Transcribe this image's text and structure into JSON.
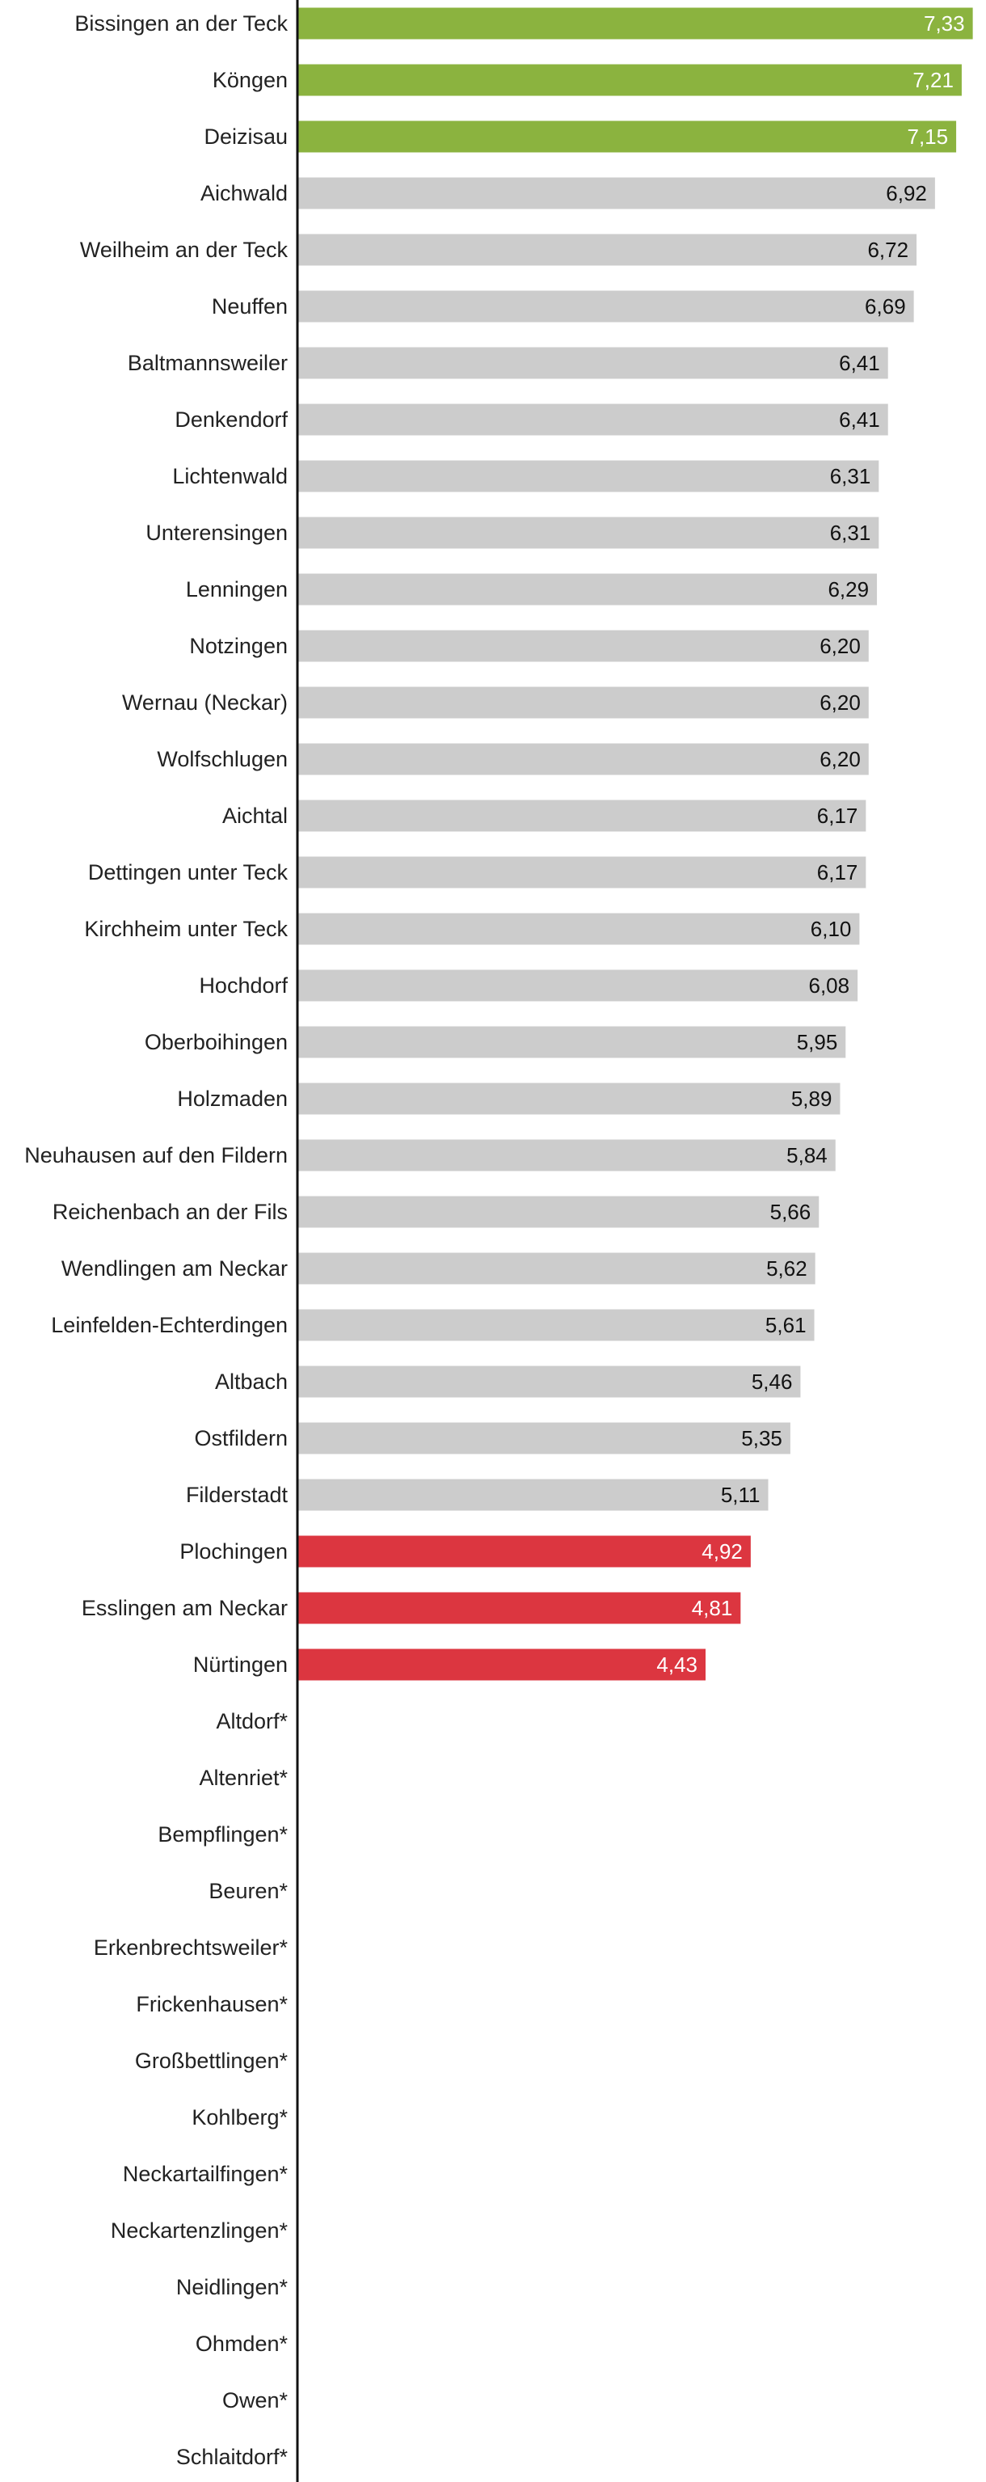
{
  "chart_data": {
    "type": "bar",
    "orientation": "horizontal",
    "title": "",
    "xlabel": "",
    "ylabel": "",
    "xlim": [
      0,
      7.5
    ],
    "grid": false,
    "legend": "none",
    "colors": {
      "high": "#8bb33f",
      "mid": "#cccccc",
      "low": "#dc3640",
      "axis": "#111111"
    },
    "categories": [
      "Bissingen an der Teck",
      "Köngen",
      "Deizisau",
      "Aichwald",
      "Weilheim an der Teck",
      "Neuffen",
      "Baltmannsweiler",
      "Denkendorf",
      "Lichtenwald",
      "Unterensingen",
      "Lenningen",
      "Notzingen",
      "Wernau (Neckar)",
      "Wolfschlugen",
      "Aichtal",
      "Dettingen unter Teck",
      "Kirchheim unter Teck",
      "Hochdorf",
      "Oberboihingen",
      "Holzmaden",
      "Neuhausen auf den Fildern",
      "Reichenbach an der Fils",
      "Wendlingen am Neckar",
      "Leinfelden-Echterdingen",
      "Altbach",
      "Ostfildern",
      "Filderstadt",
      "Plochingen",
      "Esslingen am Neckar",
      "Nürtingen",
      "Altdorf*",
      "Altenriet*",
      "Bempflingen*",
      "Beuren*",
      "Erkenbrechtsweiler*",
      "Frickenhausen*",
      "Großbettlingen*",
      "Kohlberg*",
      "Neckartailfingen*",
      "Neckartenzlingen*",
      "Neidlingen*",
      "Ohmden*",
      "Owen*",
      "Schlaitdorf*"
    ],
    "values": [
      7.33,
      7.21,
      7.15,
      6.92,
      6.72,
      6.69,
      6.41,
      6.41,
      6.31,
      6.31,
      6.29,
      6.2,
      6.2,
      6.2,
      6.17,
      6.17,
      6.1,
      6.08,
      5.95,
      5.89,
      5.84,
      5.66,
      5.62,
      5.61,
      5.46,
      5.35,
      5.11,
      4.92,
      4.81,
      4.43,
      null,
      null,
      null,
      null,
      null,
      null,
      null,
      null,
      null,
      null,
      null,
      null,
      null,
      null
    ],
    "value_labels": [
      "7,33",
      "7,21",
      "7,15",
      "6,92",
      "6,72",
      "6,69",
      "6,41",
      "6,41",
      "6,31",
      "6,31",
      "6,29",
      "6,20",
      "6,20",
      "6,20",
      "6,17",
      "6,17",
      "6,10",
      "6,08",
      "5,95",
      "5,89",
      "5,84",
      "5,66",
      "5,62",
      "5,61",
      "5,46",
      "5,35",
      "5,11",
      "4,92",
      "4,81",
      "4,43",
      "",
      "",
      "",
      "",
      "",
      "",
      "",
      "",
      "",
      "",
      "",
      "",
      "",
      ""
    ],
    "groups": [
      "high",
      "high",
      "high",
      "mid",
      "mid",
      "mid",
      "mid",
      "mid",
      "mid",
      "mid",
      "mid",
      "mid",
      "mid",
      "mid",
      "mid",
      "mid",
      "mid",
      "mid",
      "mid",
      "mid",
      "mid",
      "mid",
      "mid",
      "mid",
      "mid",
      "mid",
      "mid",
      "low",
      "low",
      "low",
      "none",
      "none",
      "none",
      "none",
      "none",
      "none",
      "none",
      "none",
      "none",
      "none",
      "none",
      "none",
      "none",
      "none"
    ]
  }
}
